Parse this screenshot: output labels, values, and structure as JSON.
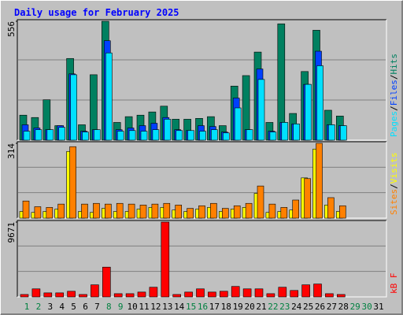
{
  "chart_data": {
    "type": "bar",
    "title": "Daily usage for February 2025",
    "categories": [
      1,
      2,
      3,
      4,
      5,
      6,
      7,
      8,
      9,
      10,
      11,
      12,
      13,
      14,
      15,
      16,
      17,
      18,
      19,
      20,
      21,
      22,
      23,
      24,
      25,
      26,
      27,
      28,
      29,
      30,
      31
    ],
    "category_colors": [
      "#008040",
      "#008040",
      "#000000",
      "#000000",
      "#000000",
      "#000000",
      "#000000",
      "#008040",
      "#008040",
      "#000000",
      "#000000",
      "#000000",
      "#000000",
      "#000000",
      "#008040",
      "#008040",
      "#000000",
      "#000000",
      "#000000",
      "#000000",
      "#000000",
      "#008040",
      "#008040",
      "#000000",
      "#000000",
      "#000000",
      "#000000",
      "#000000",
      "#008040",
      "#008040",
      "#000000"
    ],
    "legend_separator": "/",
    "panels": [
      {
        "ylim": [
          0,
          556
        ],
        "yticks": [
          556
        ],
        "series": [
          {
            "name": "Hits",
            "color": "#008060",
            "values": [
              117,
              106,
              189,
              68,
              382,
              72,
              306,
              556,
              83,
              110,
              117,
              132,
              159,
              98,
              98,
              102,
              110,
              68,
              253,
              302,
              412,
              83,
              544,
              125,
              321,
              514,
              140,
              113,
              null,
              null,
              null
            ]
          },
          {
            "name": "Files",
            "color": "#0040ff",
            "values": [
              72,
              57,
              49,
              68,
              310,
              42,
              49,
              465,
              49,
              57,
              68,
              79,
              106,
              49,
              45,
              68,
              64,
              38,
              197,
              49,
              333,
              42,
              83,
              76,
              261,
              416,
              72,
              68,
              null,
              null,
              null
            ]
          },
          {
            "name": "Pages",
            "color": "#00e0ff",
            "values": [
              42,
              49,
              49,
              60,
              306,
              38,
              49,
              408,
              42,
              45,
              42,
              49,
              98,
              45,
              45,
              42,
              49,
              34,
              151,
              49,
              284,
              38,
              83,
              76,
              261,
              348,
              72,
              68,
              null,
              null,
              null
            ]
          }
        ]
      },
      {
        "ylim": [
          0,
          314
        ],
        "yticks": [
          314
        ],
        "series": [
          {
            "name": "Visits",
            "color": "#ffff00",
            "values": [
              28,
              24,
              28,
              38,
              280,
              28,
              24,
              41,
              28,
              28,
              38,
              45,
              45,
              34,
              28,
              38,
              45,
              28,
              38,
              45,
              104,
              24,
              28,
              34,
              169,
              290,
              55,
              28,
              null,
              null,
              null
            ]
          },
          {
            "name": "Sites",
            "color": "#ff8000",
            "values": [
              72,
              48,
              45,
              59,
              300,
              59,
              62,
              59,
              62,
              59,
              55,
              59,
              62,
              55,
              41,
              52,
              62,
              41,
              52,
              62,
              135,
              59,
              45,
              76,
              166,
              314,
              86,
              52,
              null,
              null,
              null
            ]
          }
        ]
      },
      {
        "ylim": [
          0,
          9671
        ],
        "yticks": [
          9671
        ],
        "series": [
          {
            "name": "kB F",
            "color": "#ff0000",
            "values": [
              312,
              1040,
              520,
              520,
              728,
              312,
              1560,
              3848,
              416,
              416,
              624,
              1248,
              9671,
              312,
              624,
              1040,
              624,
              728,
              1352,
              1040,
              1040,
              416,
              1248,
              832,
              1560,
              1664,
              416,
              312,
              null,
              null,
              null
            ]
          }
        ]
      }
    ]
  }
}
